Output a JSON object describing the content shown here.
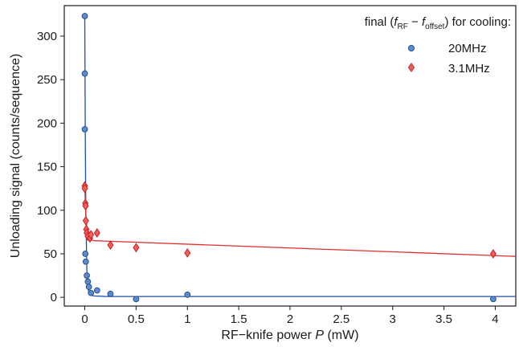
{
  "chart_data": {
    "type": "scatter",
    "xlabel_prefix": "RF−knife power ",
    "xlabel_var": "P",
    "xlabel_suffix": " (mW)",
    "ylabel": "Unloading signal (counts/sequence)",
    "xlim": [
      -0.2,
      4.2
    ],
    "ylim": [
      -10,
      335
    ],
    "xticks": [
      0,
      0.5,
      1,
      1.5,
      2,
      2.5,
      3,
      3.5,
      4
    ],
    "xtick_labels": [
      "0",
      "0.5",
      "1",
      "1.5",
      "2",
      "2.5",
      "3",
      "3.5",
      "4"
    ],
    "yticks": [
      0,
      50,
      100,
      150,
      200,
      250,
      300
    ],
    "ytick_labels": [
      "0",
      "50",
      "100",
      "150",
      "200",
      "250",
      "300"
    ],
    "legend": {
      "title_parts": {
        "prefix": "final (",
        "f1": "f",
        "sub1": "RF",
        "minus": " − ",
        "f2": "f",
        "sub2": "offset",
        "suffix": ") for cooling:"
      },
      "placement": "top-right"
    },
    "series": [
      {
        "name": "20MHz",
        "marker": "circle",
        "color": "#5b8ccc",
        "stroke": "#2b4f8e",
        "line_color": "#1f4ea8",
        "x": [
          0,
          0,
          0,
          0.005,
          0.01,
          0.02,
          0.03,
          0.04,
          0.06,
          0.12,
          0.25,
          0.5,
          1.0,
          3.98
        ],
        "y": [
          323,
          257,
          193,
          50,
          41,
          25,
          18,
          12,
          5,
          8,
          4,
          -2,
          3,
          -2
        ],
        "err": [
          2,
          2,
          2,
          2,
          2,
          2,
          2,
          2,
          2,
          3,
          3,
          3,
          3,
          3
        ],
        "fit_x": [
          0,
          0.005,
          0.01,
          0.02,
          0.03,
          0.04,
          0.05,
          0.07,
          0.1,
          0.2,
          0.5,
          1,
          2,
          4.2
        ],
        "fit_y": [
          323,
          180,
          100,
          32,
          12,
          5,
          3,
          2,
          1.5,
          1,
          1,
          1,
          1,
          1
        ]
      },
      {
        "name": "3.1MHz",
        "marker": "diamond",
        "color": "#ef6060",
        "stroke": "#c42222",
        "line_color": "#e03030",
        "x": [
          0,
          0,
          0.005,
          0.008,
          0.01,
          0.015,
          0.02,
          0.03,
          0.05,
          0.06,
          0.12,
          0.25,
          0.5,
          1.0,
          3.98
        ],
        "y": [
          128,
          125,
          108,
          105,
          88,
          78,
          74,
          70,
          68,
          72,
          74,
          60,
          57,
          51,
          50
        ],
        "err": [
          3,
          3,
          3,
          3,
          3,
          3,
          3,
          3,
          3,
          3,
          5,
          5,
          5,
          5,
          5
        ],
        "fit_x": [
          0,
          0.005,
          0.01,
          0.02,
          0.03,
          0.04,
          0.05,
          0.06,
          0.08,
          0.1,
          4.2
        ],
        "fit_y": [
          128,
          110,
          95,
          80,
          73,
          69,
          67,
          66,
          65.5,
          65,
          47
        ]
      }
    ]
  }
}
